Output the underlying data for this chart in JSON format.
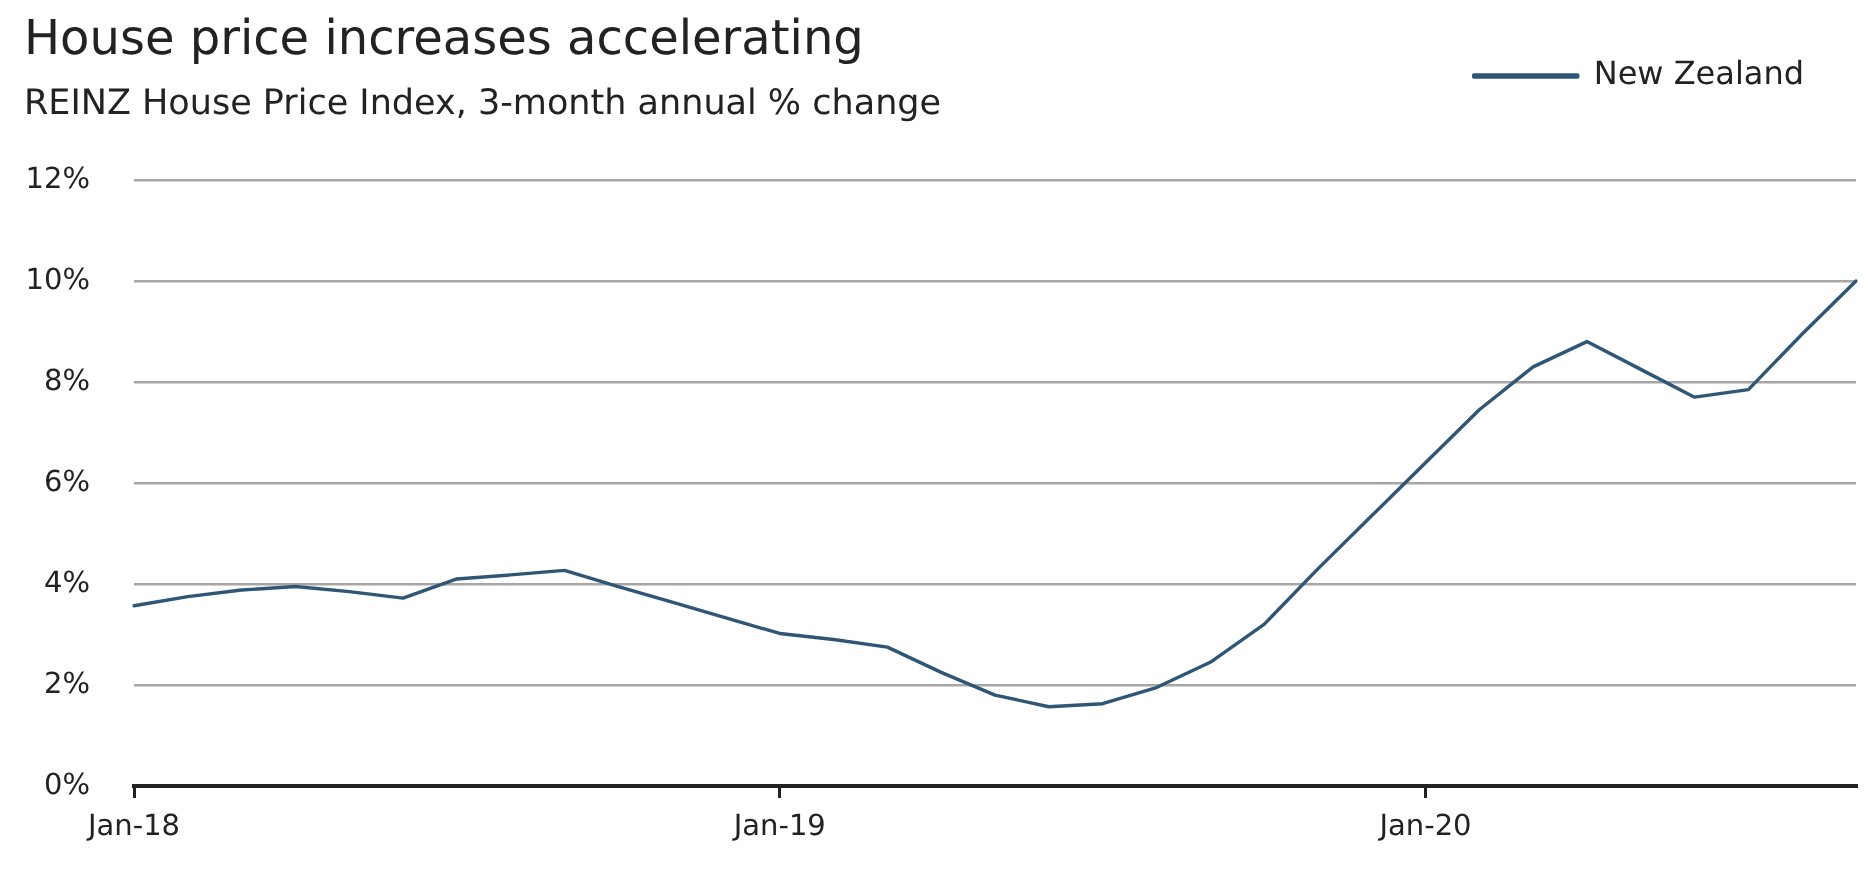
{
  "chart_data": {
    "type": "line",
    "title": "House price increases accelerating",
    "subtitle": "REINZ House Price Index, 3-month annual % change",
    "categories": [
      "Jan-18",
      null,
      null,
      null,
      null,
      null,
      null,
      null,
      null,
      null,
      null,
      null,
      "Jan-19",
      null,
      null,
      null,
      null,
      null,
      null,
      null,
      null,
      null,
      null,
      null,
      "Jan-20",
      null,
      null,
      null,
      null,
      null,
      null,
      null,
      null
    ],
    "series": [
      {
        "name": "New Zealand",
        "color": "#2f5775",
        "values": [
          3.57,
          3.75,
          3.88,
          3.95,
          3.85,
          3.72,
          4.1,
          4.18,
          4.27,
          3.95,
          3.64,
          3.33,
          3.02,
          2.9,
          2.75,
          2.25,
          1.8,
          1.57,
          1.63,
          1.95,
          2.45,
          3.2,
          4.3,
          5.35,
          6.4,
          7.45,
          8.3,
          8.8,
          8.25,
          7.7,
          7.85,
          8.95,
          10.0
        ]
      }
    ],
    "ylim": [
      0,
      12
    ],
    "yticks": [
      {
        "value": 0,
        "label": "0%"
      },
      {
        "value": 2,
        "label": "2%"
      },
      {
        "value": 4,
        "label": "4%"
      },
      {
        "value": 6,
        "label": "6%"
      },
      {
        "value": 8,
        "label": "8%"
      },
      {
        "value": 10,
        "label": "10%"
      },
      {
        "value": 12,
        "label": "12%"
      }
    ],
    "grid": "y",
    "legend": "top right",
    "marker": "none"
  }
}
